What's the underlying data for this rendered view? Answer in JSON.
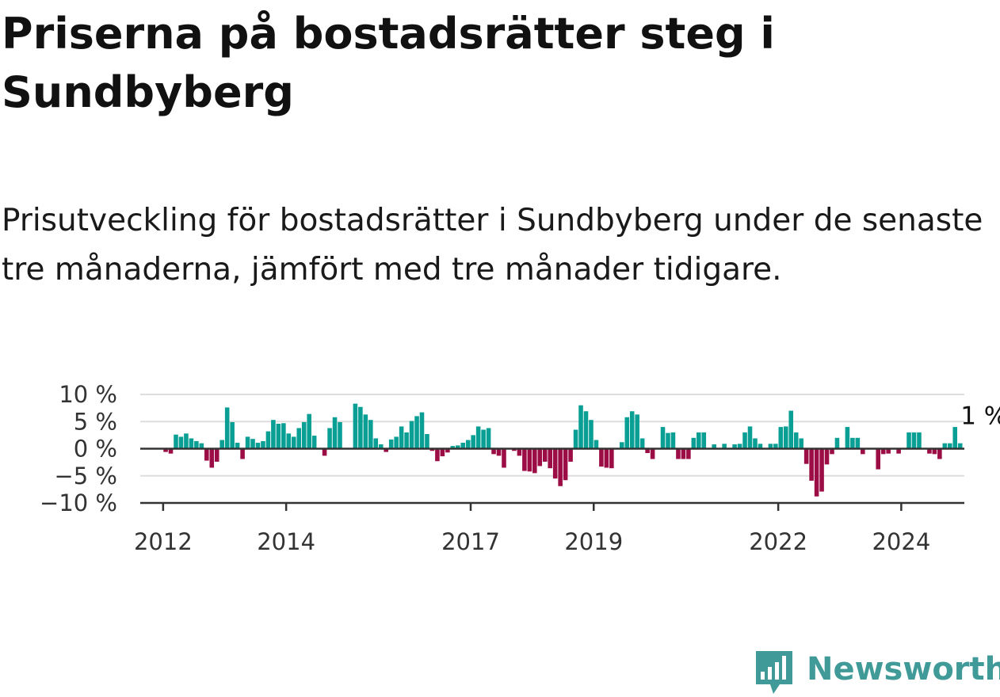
{
  "title": "Priserna på bostadsrätter steg i Sundbyberg",
  "subtitle": "Prisutveckling för bostadsrätter i Sundbyberg under de senaste tre månaderna, jämfört med tre månader tidigare.",
  "brand": {
    "name": "Newsworthy",
    "color": "#3f9a98",
    "icon": "newsworthy-logo-icon"
  },
  "chart_data": {
    "type": "bar",
    "title": "",
    "xlabel": "",
    "ylabel": "",
    "unit": "%",
    "ylim": [
      -10,
      10
    ],
    "yticks": [
      10,
      5,
      0,
      -5,
      -10
    ],
    "ytick_labels": [
      "10 %",
      "5 %",
      "0 %",
      "−5 %",
      "−10 %"
    ],
    "xticks": [
      "2012",
      "2014",
      "2017",
      "2019",
      "2022",
      "2024"
    ],
    "grid": true,
    "colors": {
      "positive": "#0a9f94",
      "negative": "#9c0d45"
    },
    "x_start": "2011-09",
    "values": [
      0,
      0,
      0,
      0,
      -0.6,
      -0.9,
      2.6,
      2.2,
      2.8,
      1.9,
      1.4,
      1.0,
      -2.2,
      -3.5,
      -2.4,
      1.6,
      7.6,
      4.9,
      1.1,
      -1.9,
      2.2,
      1.8,
      1.1,
      1.4,
      3.2,
      5.3,
      4.6,
      4.7,
      2.8,
      2.2,
      3.8,
      4.9,
      6.4,
      2.4,
      0,
      -1.3,
      3.8,
      5.8,
      4.9,
      0,
      0,
      8.3,
      7.7,
      6.3,
      5.3,
      1.9,
      0.8,
      -0.6,
      1.7,
      2.2,
      4.1,
      3.0,
      5.1,
      6.0,
      6.7,
      2.7,
      -0.4,
      -2.3,
      -1.4,
      -0.7,
      0.5,
      0.6,
      1.1,
      1.6,
      2.5,
      4.1,
      3.5,
      3.8,
      -1.0,
      -1.3,
      -3.5,
      0,
      -0.4,
      -1.3,
      -4.1,
      -4.2,
      -4.5,
      -3.2,
      -2.4,
      -3.6,
      -5.5,
      -6.9,
      -5.8,
      -2.4,
      3.5,
      8.0,
      6.9,
      5.3,
      1.6,
      -3.3,
      -3.5,
      -3.6,
      0,
      1.2,
      5.8,
      6.9,
      6.3,
      1.9,
      -0.8,
      -1.9,
      0,
      4.0,
      2.9,
      3.0,
      -1.9,
      -1.9,
      -1.9,
      2.0,
      3.0,
      3.0,
      0,
      0.8,
      0,
      0.9,
      0,
      0.8,
      0.9,
      3.0,
      4.1,
      1.9,
      0.9,
      0,
      0.9,
      0.9,
      4.0,
      4.1,
      7.0,
      3.0,
      1.9,
      -2.8,
      -5.9,
      -8.8,
      -7.9,
      -2.9,
      -1.0,
      2.0,
      0,
      4.0,
      2.0,
      2.0,
      -1.0,
      0,
      0,
      -3.8,
      -1.0,
      -0.9,
      0,
      -0.9,
      0,
      3.0,
      3.0,
      3.0,
      0,
      -0.9,
      -1.0,
      -1.9,
      1.0,
      1.0,
      4.0,
      1.0
    ],
    "annotation": {
      "text": "1 %",
      "value": 1.0,
      "series_index": "last"
    }
  }
}
